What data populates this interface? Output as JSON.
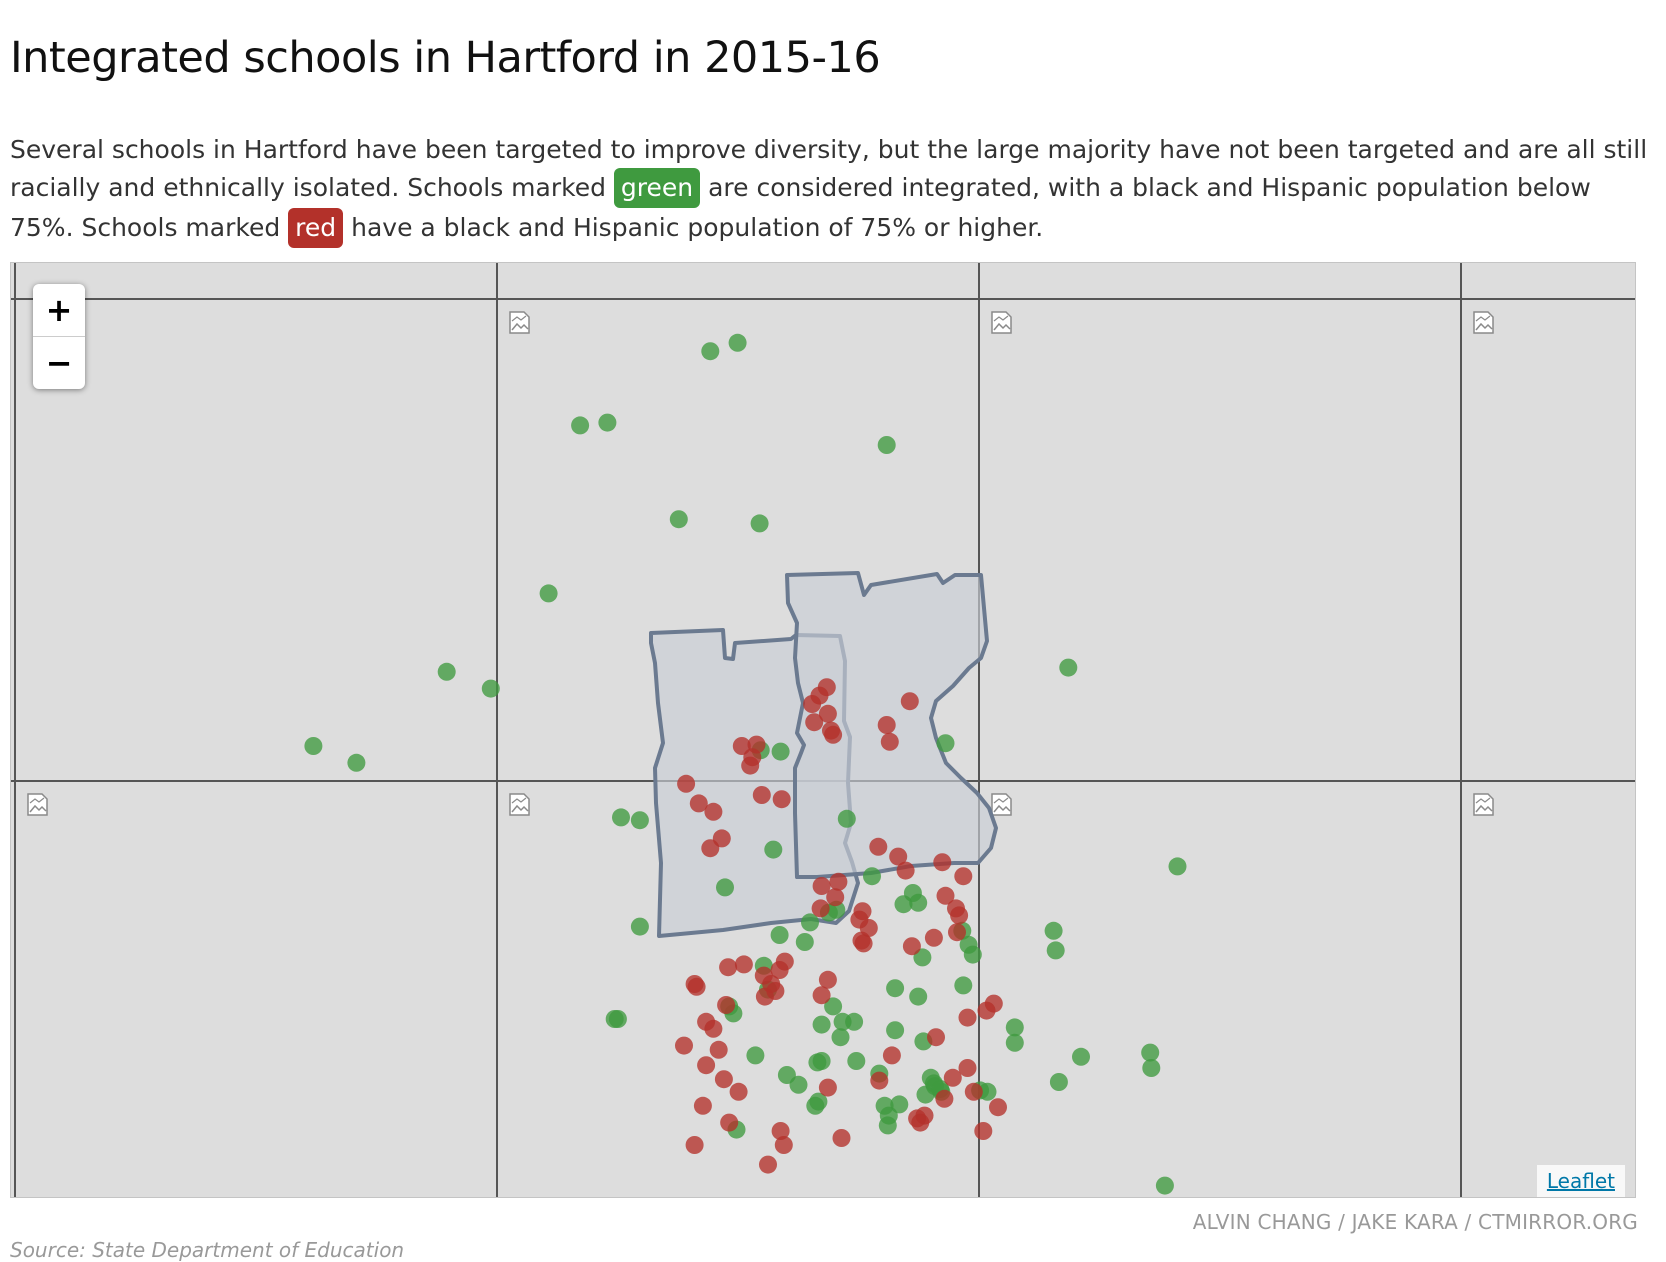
{
  "title": "Integrated schools in Hartford in 2015-16",
  "intro": {
    "part1": "Several schools in Hartford have been targeted to improve diversity, but the large majority have not been targeted and are all still racially and ethnically isolated. Schools marked ",
    "green_label": "green",
    "part2": " are considered integrated, with a black and Hispanic population below 75%. Schools marked ",
    "red_label": "red",
    "part3": " have a black and Hispanic population of 75% or higher."
  },
  "map": {
    "zoom_in_label": "+",
    "zoom_out_label": "−",
    "attribution": "Leaflet",
    "tile_state": "broken-image-icon",
    "colors": {
      "green": "#3f9a3f",
      "red": "#b3312a",
      "district_fill": "#c9ced6",
      "district_stroke": "#6b7a90",
      "background": "#dddddd"
    },
    "legend_threshold": "75%",
    "schools": [
      {
        "c": "green",
        "lat": 41.8637,
        "lng": -72.6734
      },
      {
        "c": "green",
        "lat": 41.8643,
        "lng": -72.6708
      },
      {
        "c": "green",
        "lat": 41.8584,
        "lng": -72.6858
      },
      {
        "c": "green",
        "lat": 41.8586,
        "lng": -72.6832
      },
      {
        "c": "green",
        "lat": 41.857,
        "lng": -72.6566
      },
      {
        "c": "green",
        "lat": 41.8517,
        "lng": -72.6764
      },
      {
        "c": "green",
        "lat": 41.8514,
        "lng": -72.6687
      },
      {
        "c": "green",
        "lat": 41.8464,
        "lng": -72.6888
      },
      {
        "c": "green",
        "lat": 41.8408,
        "lng": -72.6985
      },
      {
        "c": "green",
        "lat": 41.8396,
        "lng": -72.6943
      },
      {
        "c": "green",
        "lat": 41.8355,
        "lng": -72.7112
      },
      {
        "c": "green",
        "lat": 41.8343,
        "lng": -72.7071
      },
      {
        "c": "green",
        "lat": 41.8411,
        "lng": -72.6393
      },
      {
        "c": "green",
        "lat": 41.8269,
        "lng": -72.6289
      },
      {
        "c": "green",
        "lat": 41.8357,
        "lng": -72.651
      },
      {
        "c": "green",
        "lat": 41.8352,
        "lng": -72.6686
      },
      {
        "c": "green",
        "lat": 41.8351,
        "lng": -72.6667
      },
      {
        "c": "green",
        "lat": 41.8304,
        "lng": -72.6819
      },
      {
        "c": "green",
        "lat": 41.8302,
        "lng": -72.6801
      },
      {
        "c": "green",
        "lat": 41.8281,
        "lng": -72.6674
      },
      {
        "c": "green",
        "lat": 41.8303,
        "lng": -72.6604
      },
      {
        "c": "green",
        "lat": 41.8262,
        "lng": -72.658
      },
      {
        "c": "green",
        "lat": 41.825,
        "lng": -72.6541
      },
      {
        "c": "green",
        "lat": 41.8254,
        "lng": -72.672
      },
      {
        "c": "green",
        "lat": 41.8226,
        "lng": -72.6801
      },
      {
        "c": "green",
        "lat": 41.8243,
        "lng": -72.6536
      },
      {
        "c": "green",
        "lat": 41.8242,
        "lng": -72.655
      },
      {
        "c": "green",
        "lat": 41.8223,
        "lng": -72.6494
      },
      {
        "c": "green",
        "lat": 41.8223,
        "lng": -72.6407
      },
      {
        "c": "green",
        "lat": 41.8209,
        "lng": -72.6405
      },
      {
        "c": "green",
        "lat": 41.8236,
        "lng": -72.6621
      },
      {
        "c": "green",
        "lat": 41.8238,
        "lng": -72.6614
      },
      {
        "c": "green",
        "lat": 41.8229,
        "lng": -72.6639
      },
      {
        "c": "green",
        "lat": 41.822,
        "lng": -72.6668
      },
      {
        "c": "green",
        "lat": 41.8215,
        "lng": -72.6644
      },
      {
        "c": "green",
        "lat": 41.8213,
        "lng": -72.6488
      },
      {
        "c": "green",
        "lat": 41.8206,
        "lng": -72.6484
      },
      {
        "c": "green",
        "lat": 41.8204,
        "lng": -72.6532
      },
      {
        "c": "green",
        "lat": 41.8198,
        "lng": -72.6683
      },
      {
        "c": "green",
        "lat": 41.8184,
        "lng": -72.6493
      },
      {
        "c": "green",
        "lat": 41.8182,
        "lng": -72.6558
      },
      {
        "c": "green",
        "lat": 41.8181,
        "lng": -72.6679
      },
      {
        "c": "green",
        "lat": 41.8176,
        "lng": -72.6536
      },
      {
        "c": "green",
        "lat": 41.8169,
        "lng": -72.6716
      },
      {
        "c": "green",
        "lat": 41.8164,
        "lng": -72.6712
      },
      {
        "c": "green",
        "lat": 41.816,
        "lng": -72.6822
      },
      {
        "c": "green",
        "lat": 41.816,
        "lng": -72.6825
      },
      {
        "c": "green",
        "lat": 41.8169,
        "lng": -72.6617
      },
      {
        "c": "green",
        "lat": 41.8158,
        "lng": -72.6608
      },
      {
        "c": "green",
        "lat": 41.8156,
        "lng": -72.6628
      },
      {
        "c": "green",
        "lat": 41.8158,
        "lng": -72.6597
      },
      {
        "c": "green",
        "lat": 41.8152,
        "lng": -72.6558
      },
      {
        "c": "green",
        "lat": 41.8144,
        "lng": -72.6531
      },
      {
        "c": "green",
        "lat": 41.8147,
        "lng": -72.661
      },
      {
        "c": "green",
        "lat": 41.8134,
        "lng": -72.6691
      },
      {
        "c": "green",
        "lat": 41.813,
        "lng": -72.6595
      },
      {
        "c": "green",
        "lat": 41.812,
        "lng": -72.6661
      },
      {
        "c": "green",
        "lat": 41.8101,
        "lng": -72.6631
      },
      {
        "c": "green",
        "lat": 41.8121,
        "lng": -72.6573
      },
      {
        "c": "green",
        "lat": 41.813,
        "lng": -72.6628
      },
      {
        "c": "green",
        "lat": 41.8129,
        "lng": -72.6632
      },
      {
        "c": "green",
        "lat": 41.8113,
        "lng": -72.665
      },
      {
        "c": "green",
        "lat": 41.8098,
        "lng": -72.6634
      },
      {
        "c": "green",
        "lat": 41.8081,
        "lng": -72.6709
      },
      {
        "c": "green",
        "lat": 41.8098,
        "lng": -72.6568
      },
      {
        "c": "green",
        "lat": 41.8084,
        "lng": -72.6565
      },
      {
        "c": "green",
        "lat": 41.8091,
        "lng": -72.6564
      },
      {
        "c": "green",
        "lat": 41.8106,
        "lng": -72.6529
      },
      {
        "c": "green",
        "lat": 41.8118,
        "lng": -72.6524
      },
      {
        "c": "green",
        "lat": 41.8114,
        "lng": -72.6521
      },
      {
        "c": "green",
        "lat": 41.811,
        "lng": -72.6515
      },
      {
        "c": "green",
        "lat": 41.8108,
        "lng": -72.647
      },
      {
        "c": "green",
        "lat": 41.8109,
        "lng": -72.6477
      },
      {
        "c": "green",
        "lat": 41.8133,
        "lng": -72.6381
      },
      {
        "c": "green",
        "lat": 41.8136,
        "lng": -72.6315
      },
      {
        "c": "green",
        "lat": 41.8125,
        "lng": -72.6314
      },
      {
        "c": "green",
        "lat": 41.8108,
        "lng": -72.6514
      },
      {
        "c": "green",
        "lat": 41.8112,
        "lng": -72.652
      },
      {
        "c": "green",
        "lat": 41.8099,
        "lng": -72.6554
      },
      {
        "c": "green",
        "lat": 41.8041,
        "lng": -72.6301
      },
      {
        "c": "green",
        "lat": 41.8,
        "lng": -72.642
      },
      {
        "c": "green",
        "lat": 41.8115,
        "lng": -72.6402
      },
      {
        "c": "green",
        "lat": 41.8154,
        "lng": -72.6444
      },
      {
        "c": "green",
        "lat": 41.8143,
        "lng": -72.6444
      },
      {
        "c": "red",
        "lat": 41.8397,
        "lng": -72.6623
      },
      {
        "c": "red",
        "lat": 41.8391,
        "lng": -72.663
      },
      {
        "c": "red",
        "lat": 41.8385,
        "lng": -72.6637
      },
      {
        "c": "red",
        "lat": 41.8372,
        "lng": -72.6635
      },
      {
        "c": "red",
        "lat": 41.8378,
        "lng": -72.6622
      },
      {
        "c": "red",
        "lat": 41.8366,
        "lng": -72.6619
      },
      {
        "c": "red",
        "lat": 41.8363,
        "lng": -72.6617
      },
      {
        "c": "red",
        "lat": 41.837,
        "lng": -72.6566
      },
      {
        "c": "red",
        "lat": 41.8387,
        "lng": -72.6544
      },
      {
        "c": "red",
        "lat": 41.8358,
        "lng": -72.6563
      },
      {
        "c": "red",
        "lat": 41.8355,
        "lng": -72.6704
      },
      {
        "c": "red",
        "lat": 41.8356,
        "lng": -72.669
      },
      {
        "c": "red",
        "lat": 41.8347,
        "lng": -72.6694
      },
      {
        "c": "red",
        "lat": 41.8341,
        "lng": -72.6696
      },
      {
        "c": "red",
        "lat": 41.8328,
        "lng": -72.6757
      },
      {
        "c": "red",
        "lat": 41.832,
        "lng": -72.6685
      },
      {
        "c": "red",
        "lat": 41.8317,
        "lng": -72.6666
      },
      {
        "c": "red",
        "lat": 41.8308,
        "lng": -72.6731
      },
      {
        "c": "red",
        "lat": 41.8289,
        "lng": -72.6723
      },
      {
        "c": "red",
        "lat": 41.8282,
        "lng": -72.6734
      },
      {
        "c": "red",
        "lat": 41.8314,
        "lng": -72.6745
      },
      {
        "c": "red",
        "lat": 41.8283,
        "lng": -72.6574
      },
      {
        "c": "red",
        "lat": 41.8276,
        "lng": -72.6555
      },
      {
        "c": "red",
        "lat": 41.8266,
        "lng": -72.6548
      },
      {
        "c": "red",
        "lat": 41.8258,
        "lng": -72.6612
      },
      {
        "c": "red",
        "lat": 41.8255,
        "lng": -72.6628
      },
      {
        "c": "red",
        "lat": 41.8247,
        "lng": -72.6615
      },
      {
        "c": "red",
        "lat": 41.8239,
        "lng": -72.6629
      },
      {
        "c": "red",
        "lat": 41.8225,
        "lng": -72.6583
      },
      {
        "c": "red",
        "lat": 41.8216,
        "lng": -72.659
      },
      {
        "c": "red",
        "lat": 41.8214,
        "lng": -72.6588
      },
      {
        "c": "red",
        "lat": 41.8201,
        "lng": -72.6663
      },
      {
        "c": "red",
        "lat": 41.8195,
        "lng": -72.6668
      },
      {
        "c": "red",
        "lat": 41.8191,
        "lng": -72.6683
      },
      {
        "c": "red",
        "lat": 41.8185,
        "lng": -72.6676
      },
      {
        "c": "red",
        "lat": 41.8188,
        "lng": -72.6622
      },
      {
        "c": "red",
        "lat": 41.8177,
        "lng": -72.6628
      },
      {
        "c": "red",
        "lat": 41.8199,
        "lng": -72.6702
      },
      {
        "c": "red",
        "lat": 41.8197,
        "lng": -72.6717
      },
      {
        "c": "red",
        "lat": 41.8185,
        "lng": -72.6749
      },
      {
        "c": "red",
        "lat": 41.8183,
        "lng": -72.6747
      },
      {
        "c": "red",
        "lat": 41.817,
        "lng": -72.6719
      },
      {
        "c": "red",
        "lat": 41.8158,
        "lng": -72.6738
      },
      {
        "c": "red",
        "lat": 41.8153,
        "lng": -72.6731
      },
      {
        "c": "red",
        "lat": 41.8141,
        "lng": -72.6759
      },
      {
        "c": "red",
        "lat": 41.8138,
        "lng": -72.6726
      },
      {
        "c": "red",
        "lat": 41.8127,
        "lng": -72.6738
      },
      {
        "c": "red",
        "lat": 41.8117,
        "lng": -72.6721
      },
      {
        "c": "red",
        "lat": 41.8108,
        "lng": -72.6707
      },
      {
        "c": "red",
        "lat": 41.8176,
        "lng": -72.6682
      },
      {
        "c": "red",
        "lat": 41.818,
        "lng": -72.6672
      },
      {
        "c": "red",
        "lat": 41.8098,
        "lng": -72.6741
      },
      {
        "c": "red",
        "lat": 41.8086,
        "lng": -72.6716
      },
      {
        "c": "red",
        "lat": 41.807,
        "lng": -72.6749
      },
      {
        "c": "red",
        "lat": 41.808,
        "lng": -72.6667
      },
      {
        "c": "red",
        "lat": 41.807,
        "lng": -72.6664
      },
      {
        "c": "red",
        "lat": 41.8056,
        "lng": -72.6679
      },
      {
        "c": "red",
        "lat": 41.8075,
        "lng": -72.6609
      },
      {
        "c": "red",
        "lat": 41.8111,
        "lng": -72.6622
      },
      {
        "c": "red",
        "lat": 41.8116,
        "lng": -72.6573
      },
      {
        "c": "red",
        "lat": 41.8134,
        "lng": -72.6561
      },
      {
        "c": "red",
        "lat": 41.8147,
        "lng": -72.6519
      },
      {
        "c": "red",
        "lat": 41.8125,
        "lng": -72.6489
      },
      {
        "c": "red",
        "lat": 41.8118,
        "lng": -72.6503
      },
      {
        "c": "red",
        "lat": 41.8108,
        "lng": -72.6483
      },
      {
        "c": "red",
        "lat": 41.8103,
        "lng": -72.6511
      },
      {
        "c": "red",
        "lat": 41.8097,
        "lng": -72.646
      },
      {
        "c": "red",
        "lat": 41.8089,
        "lng": -72.6537
      },
      {
        "c": "red",
        "lat": 41.8086,
        "lng": -72.6534
      },
      {
        "c": "red",
        "lat": 41.808,
        "lng": -72.6474
      },
      {
        "c": "red",
        "lat": 41.8091,
        "lng": -72.653
      },
      {
        "c": "red",
        "lat": 41.8166,
        "lng": -72.6471
      },
      {
        "c": "red",
        "lat": 41.8171,
        "lng": -72.6464
      },
      {
        "c": "red",
        "lat": 41.8161,
        "lng": -72.6489
      },
      {
        "c": "red",
        "lat": 41.8212,
        "lng": -72.6542
      },
      {
        "c": "red",
        "lat": 41.8218,
        "lng": -72.6521
      },
      {
        "c": "red",
        "lat": 41.8222,
        "lng": -72.6499
      },
      {
        "c": "red",
        "lat": 41.8234,
        "lng": -72.6497
      },
      {
        "c": "red",
        "lat": 41.8239,
        "lng": -72.65
      },
      {
        "c": "red",
        "lat": 41.8272,
        "lng": -72.6513
      },
      {
        "c": "red",
        "lat": 41.8237,
        "lng": -72.6589
      },
      {
        "c": "red",
        "lat": 41.8231,
        "lng": -72.6592
      },
      {
        "c": "red",
        "lat": 41.8248,
        "lng": -72.651
      },
      {
        "c": "red",
        "lat": 41.8262,
        "lng": -72.6493
      }
    ]
  },
  "credit": "ALVIN CHANG / JAKE KARA / CTMIRROR.ORG",
  "source": "Source: State Department of Education"
}
